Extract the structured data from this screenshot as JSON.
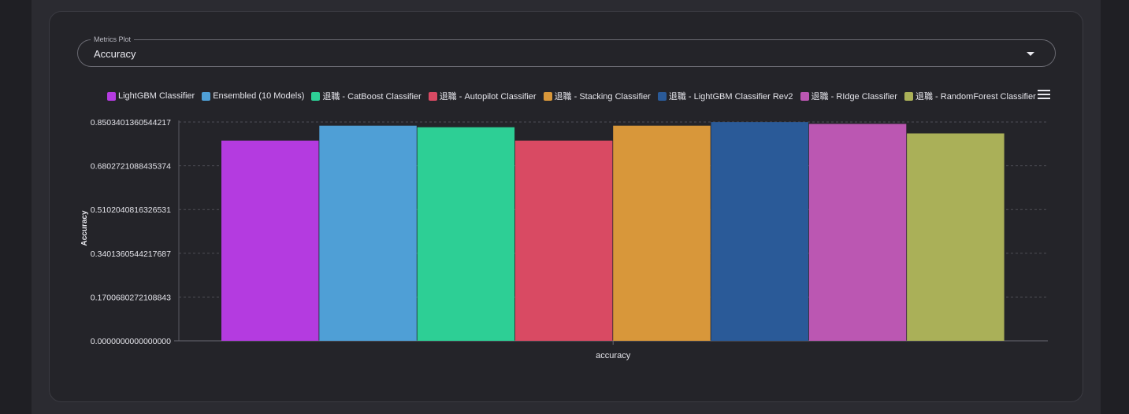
{
  "card": {
    "select_label": "Metrics Plot",
    "select_value": "Accuracy"
  },
  "colors": {
    "card_bg": "#242429",
    "grid": "#4a4a52",
    "text": "#e4e4ea"
  },
  "chart_data": {
    "type": "bar",
    "title": "",
    "xlabel": "accuracy",
    "ylabel": "Accuracy",
    "categories": [
      "accuracy"
    ],
    "ylim": [
      0,
      0.8503401360544217
    ],
    "y_ticks": [
      "0.0000000000000000",
      "0.1700680272108843",
      "0.3401360544217687",
      "0.5102040816326531",
      "0.6802721088435374",
      "0.8503401360544217"
    ],
    "y_tick_values": [
      0,
      0.1700680272108843,
      0.3401360544217687,
      0.5102040816326531,
      0.6802721088435374,
      0.8503401360544217
    ],
    "grid": true,
    "legend_position": "top",
    "series": [
      {
        "name": "LightGBM Classifier",
        "values": [
          0.778
        ],
        "color": "#b43be0"
      },
      {
        "name": "Ensembled (10 Models)",
        "values": [
          0.836
        ],
        "color": "#4f9fd6"
      },
      {
        "name": "退職 - CatBoost Classifier",
        "values": [
          0.83
        ],
        "color": "#2dcf95"
      },
      {
        "name": "退職 - Autopilot Classifier",
        "values": [
          0.778
        ],
        "color": "#d94a63"
      },
      {
        "name": "退職 - Stacking Classifier",
        "values": [
          0.836
        ],
        "color": "#d8973a"
      },
      {
        "name": "退職 - LightGBM Classifier Rev2",
        "values": [
          0.85
        ],
        "color": "#2a5a98"
      },
      {
        "name": "退職 - RIdge Classifier",
        "values": [
          0.843
        ],
        "color": "#bb57b2"
      },
      {
        "name": "退職 - RandomForest Classifier",
        "values": [
          0.806
        ],
        "color": "#aab058"
      }
    ]
  }
}
